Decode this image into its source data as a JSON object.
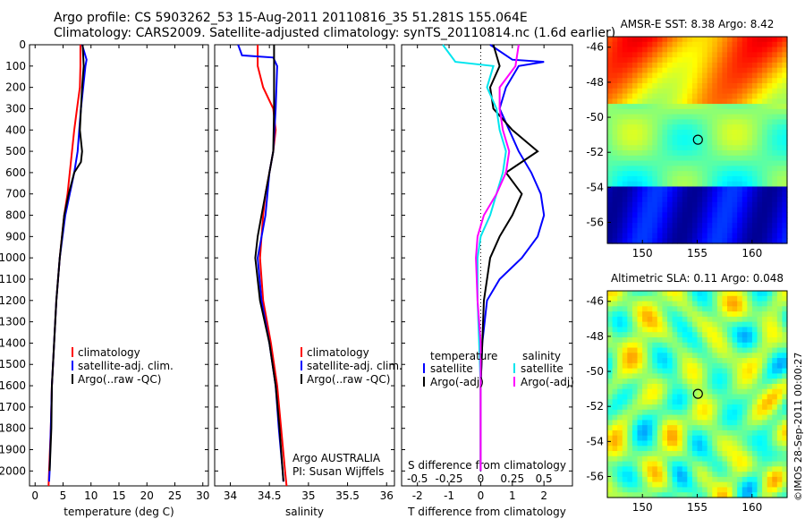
{
  "title": {
    "line1": "Argo profile: CS 5903262_53 15-Aug-2011 20110816_35 51.281S 155.064E",
    "line2": "Climatology: CARS2009. Satellite-adjusted climatology: synTS_20110814.nc (1.6d earlier)"
  },
  "stamp": "©IMOS 28-Sep-2011 00:00:27",
  "colors": {
    "climatology": "#ff0000",
    "satellite": "#0000ff",
    "argo": "#000000",
    "sal_satellite": "#00e5ee",
    "sal_argo": "#ff00ff"
  },
  "chart_data": [
    {
      "type": "line",
      "panel": "temperature",
      "xlabel": "temperature (deg C)",
      "xlim": [
        -1,
        31
      ],
      "xticks": [
        0,
        5,
        10,
        15,
        20,
        25,
        30
      ],
      "ylim": [
        2070,
        0
      ],
      "yticks": [
        0,
        100,
        200,
        300,
        400,
        500,
        600,
        700,
        800,
        900,
        1000,
        1100,
        1200,
        1300,
        1400,
        1500,
        1600,
        1700,
        1800,
        1900,
        2000
      ],
      "legend": [
        "climatology",
        "satellite-adj. clim.",
        "Argo(..raw -QC)"
      ],
      "series": [
        {
          "name": "climatology",
          "color": "#ff0000",
          "points": [
            [
              8.1,
              0
            ],
            [
              8.1,
              100
            ],
            [
              8.0,
              200
            ],
            [
              7.5,
              300
            ],
            [
              7.0,
              400
            ],
            [
              6.6,
              500
            ],
            [
              6.2,
              600
            ],
            [
              5.8,
              700
            ],
            [
              5.2,
              800
            ],
            [
              4.8,
              900
            ],
            [
              4.4,
              1000
            ],
            [
              3.8,
              1200
            ],
            [
              3.4,
              1400
            ],
            [
              3.0,
              1600
            ],
            [
              2.8,
              1800
            ],
            [
              2.5,
              2000
            ],
            [
              2.4,
              2070
            ]
          ]
        },
        {
          "name": "satellite-adj. clim.",
          "color": "#0000ff",
          "points": [
            [
              8.4,
              0
            ],
            [
              9.2,
              70
            ],
            [
              9.0,
              100
            ],
            [
              8.6,
              200
            ],
            [
              8.2,
              300
            ],
            [
              7.9,
              400
            ],
            [
              7.6,
              500
            ],
            [
              7.0,
              600
            ],
            [
              6.2,
              700
            ],
            [
              5.4,
              800
            ],
            [
              4.9,
              900
            ],
            [
              4.4,
              1000
            ],
            [
              3.8,
              1200
            ],
            [
              3.4,
              1400
            ],
            [
              3.0,
              1600
            ],
            [
              2.8,
              1800
            ],
            [
              2.6,
              2000
            ],
            [
              2.5,
              2050
            ]
          ]
        },
        {
          "name": "Argo(..raw -QC)",
          "color": "#000000",
          "points": [
            [
              8.5,
              0
            ],
            [
              8.7,
              100
            ],
            [
              8.4,
              200
            ],
            [
              8.2,
              300
            ],
            [
              8.0,
              400
            ],
            [
              8.4,
              500
            ],
            [
              8.2,
              550
            ],
            [
              7.0,
              600
            ],
            [
              6.0,
              700
            ],
            [
              5.2,
              800
            ],
            [
              4.8,
              900
            ],
            [
              4.4,
              1000
            ],
            [
              3.8,
              1200
            ],
            [
              3.4,
              1400
            ],
            [
              3.0,
              1600
            ],
            [
              2.9,
              1800
            ],
            [
              2.6,
              2000
            ]
          ]
        }
      ]
    },
    {
      "type": "line",
      "panel": "salinity",
      "xlabel": "salinity",
      "xlim": [
        33.8,
        36.1
      ],
      "xticks": [
        34,
        34.5,
        35,
        35.5,
        36
      ],
      "legend": [
        "climatology",
        "satellite-adj. clim.",
        "Argo(..raw -QC)"
      ],
      "notes": [
        "Argo AUSTRALIA",
        "PI: Susan Wijffels"
      ],
      "series": [
        {
          "name": "climatology",
          "color": "#ff0000",
          "points": [
            [
              34.35,
              0
            ],
            [
              34.35,
              100
            ],
            [
              34.42,
              200
            ],
            [
              34.55,
              300
            ],
            [
              34.58,
              400
            ],
            [
              34.55,
              500
            ],
            [
              34.5,
              600
            ],
            [
              34.45,
              700
            ],
            [
              34.42,
              800
            ],
            [
              34.4,
              900
            ],
            [
              34.38,
              1000
            ],
            [
              34.42,
              1200
            ],
            [
              34.52,
              1400
            ],
            [
              34.6,
              1600
            ],
            [
              34.65,
              1800
            ],
            [
              34.7,
              2000
            ],
            [
              34.72,
              2070
            ]
          ]
        },
        {
          "name": "satellite-adj. clim.",
          "color": "#0000ff",
          "points": [
            [
              34.1,
              0
            ],
            [
              34.15,
              50
            ],
            [
              34.55,
              60
            ],
            [
              34.6,
              100
            ],
            [
              34.58,
              300
            ],
            [
              34.55,
              500
            ],
            [
              34.5,
              600
            ],
            [
              34.45,
              800
            ],
            [
              34.35,
              1000
            ],
            [
              34.4,
              1200
            ],
            [
              34.5,
              1400
            ],
            [
              34.58,
              1600
            ],
            [
              34.62,
              1800
            ],
            [
              34.67,
              2000
            ],
            [
              34.68,
              2050
            ]
          ]
        },
        {
          "name": "Argo(..raw -QC)",
          "color": "#000000",
          "points": [
            [
              34.56,
              0
            ],
            [
              34.56,
              100
            ],
            [
              34.56,
              300
            ],
            [
              34.55,
              500
            ],
            [
              34.5,
              600
            ],
            [
              34.45,
              700
            ],
            [
              34.4,
              800
            ],
            [
              34.35,
              900
            ],
            [
              34.32,
              1000
            ],
            [
              34.38,
              1200
            ],
            [
              34.5,
              1400
            ],
            [
              34.58,
              1600
            ],
            [
              34.63,
              1800
            ],
            [
              34.67,
              2000
            ],
            [
              34.68,
              2050
            ]
          ]
        }
      ]
    },
    {
      "type": "line",
      "panel": "difference",
      "xlabel": "T difference from climatology",
      "xlabel_top": "S difference from climatology",
      "xlim": [
        -2.5,
        2.9
      ],
      "xticks": [
        -2,
        -1,
        0,
        1,
        2
      ],
      "xticks_top": [
        -0.5,
        -0.25,
        0,
        0.25,
        0.5
      ],
      "legend_temperature": {
        "header": "temperature",
        "items": [
          "satellite",
          "Argo(-adj)"
        ]
      },
      "legend_salinity": {
        "header": "salinity",
        "items": [
          "satellite",
          "Argo(-adj)"
        ]
      },
      "series": [
        {
          "name": "temperature satellite",
          "color": "#0000ff",
          "points": [
            [
              0.3,
              0
            ],
            [
              1.0,
              70
            ],
            [
              2.0,
              80
            ],
            [
              1.2,
              100
            ],
            [
              0.8,
              200
            ],
            [
              0.6,
              300
            ],
            [
              0.9,
              400
            ],
            [
              1.2,
              500
            ],
            [
              1.6,
              600
            ],
            [
              1.9,
              700
            ],
            [
              2.0,
              800
            ],
            [
              1.8,
              900
            ],
            [
              1.3,
              1000
            ],
            [
              0.6,
              1100
            ],
            [
              0.2,
              1200
            ],
            [
              0.05,
              1400
            ],
            [
              0,
              1600
            ],
            [
              0,
              2000
            ]
          ]
        },
        {
          "name": "temperature Argo(-adj)",
          "color": "#000000",
          "points": [
            [
              0.4,
              0
            ],
            [
              0.6,
              100
            ],
            [
              0.3,
              200
            ],
            [
              0.4,
              300
            ],
            [
              1.0,
              400
            ],
            [
              1.8,
              500
            ],
            [
              0.8,
              600
            ],
            [
              1.3,
              700
            ],
            [
              1.0,
              800
            ],
            [
              0.6,
              900
            ],
            [
              0.3,
              1000
            ],
            [
              0.1,
              1200
            ],
            [
              0.05,
              1400
            ],
            [
              0,
              1600
            ],
            [
              0,
              2000
            ]
          ]
        },
        {
          "name": "salinity satellite",
          "color": "#00e5ee",
          "points": [
            [
              -1.2,
              0
            ],
            [
              -0.8,
              80
            ],
            [
              0.4,
              100
            ],
            [
              0.2,
              200
            ],
            [
              0.5,
              300
            ],
            [
              0.6,
              400
            ],
            [
              0.8,
              500
            ],
            [
              0.7,
              600
            ],
            [
              0.5,
              700
            ],
            [
              0.3,
              800
            ],
            [
              0,
              900
            ],
            [
              -0.1,
              1000
            ],
            [
              -0.1,
              1200
            ],
            [
              -0.05,
              1400
            ],
            [
              0,
              1600
            ],
            [
              0,
              2000
            ]
          ]
        },
        {
          "name": "salinity Argo(-adj)",
          "color": "#ff00ff",
          "points": [
            [
              1.2,
              0
            ],
            [
              1.1,
              100
            ],
            [
              0.6,
              200
            ],
            [
              0.6,
              300
            ],
            [
              0.7,
              400
            ],
            [
              0.9,
              500
            ],
            [
              0.8,
              600
            ],
            [
              0.5,
              700
            ],
            [
              0.1,
              800
            ],
            [
              -0.1,
              900
            ],
            [
              -0.15,
              1000
            ],
            [
              -0.1,
              1200
            ],
            [
              0,
              1400
            ],
            [
              0,
              1600
            ],
            [
              0,
              2000
            ]
          ]
        }
      ]
    },
    {
      "type": "heatmap",
      "panel": "sst-map",
      "title": "AMSR-E SST: 8.38 Argo: 8.42",
      "xticks": [
        150,
        155,
        160
      ],
      "yticks": [
        -46,
        -48,
        -50,
        -52,
        -54,
        -56
      ],
      "xlim": [
        146.8,
        163.2
      ],
      "ylim": [
        -57.2,
        -45.4
      ],
      "float_position": [
        155.064,
        -51.281
      ]
    },
    {
      "type": "heatmap",
      "panel": "sla-map",
      "title": "Altimetric SLA: 0.11 Argo: 0.048",
      "xticks": [
        150,
        155,
        160
      ],
      "yticks": [
        -46,
        -48,
        -50,
        -52,
        -54,
        -56
      ],
      "xlim": [
        146.8,
        163.2
      ],
      "ylim": [
        -57.2,
        -45.4
      ],
      "float_position": [
        155.064,
        -51.281
      ]
    }
  ]
}
